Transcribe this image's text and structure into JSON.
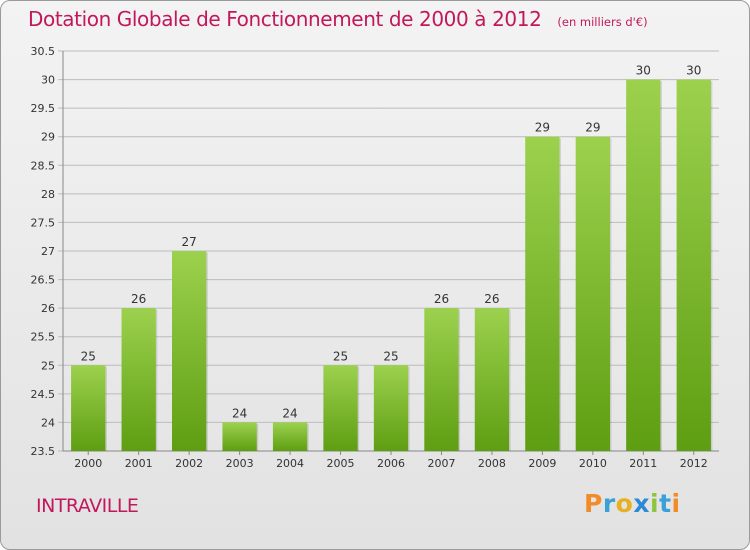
{
  "title": "Dotation Globale de Fonctionnement de 2000 à 2012",
  "subtitle": "(en milliers d'€)",
  "commune": "INTRAVILLE",
  "logo": {
    "letters": [
      "P",
      "r",
      "o",
      "x",
      "i",
      "t",
      "i"
    ]
  },
  "colors": {
    "bar_top": "#9cd14e",
    "bar_bottom": "#5e9e12",
    "title": "#c2185b",
    "grid": "#bcbcbc"
  },
  "chart_data": {
    "type": "bar",
    "categories": [
      "2000",
      "2001",
      "2002",
      "2003",
      "2004",
      "2005",
      "2006",
      "2007",
      "2008",
      "2009",
      "2010",
      "2011",
      "2012"
    ],
    "values": [
      25,
      26,
      27,
      24,
      24,
      25,
      25,
      26,
      26,
      29,
      29,
      30,
      30
    ],
    "data_labels": [
      "25",
      "26",
      "27",
      "24",
      "24",
      "25",
      "25",
      "26",
      "26",
      "29",
      "29",
      "30",
      "30"
    ],
    "title": "Dotation Globale de Fonctionnement de 2000 à 2012",
    "xlabel": "",
    "ylabel": "",
    "ylim": [
      23.5,
      30.5
    ],
    "yticks": [
      "23.5",
      "24",
      "24.5",
      "25",
      "25.5",
      "26",
      "26.5",
      "27",
      "27.5",
      "28",
      "28.5",
      "29",
      "29.5",
      "30",
      "30.5"
    ],
    "grid": true
  }
}
